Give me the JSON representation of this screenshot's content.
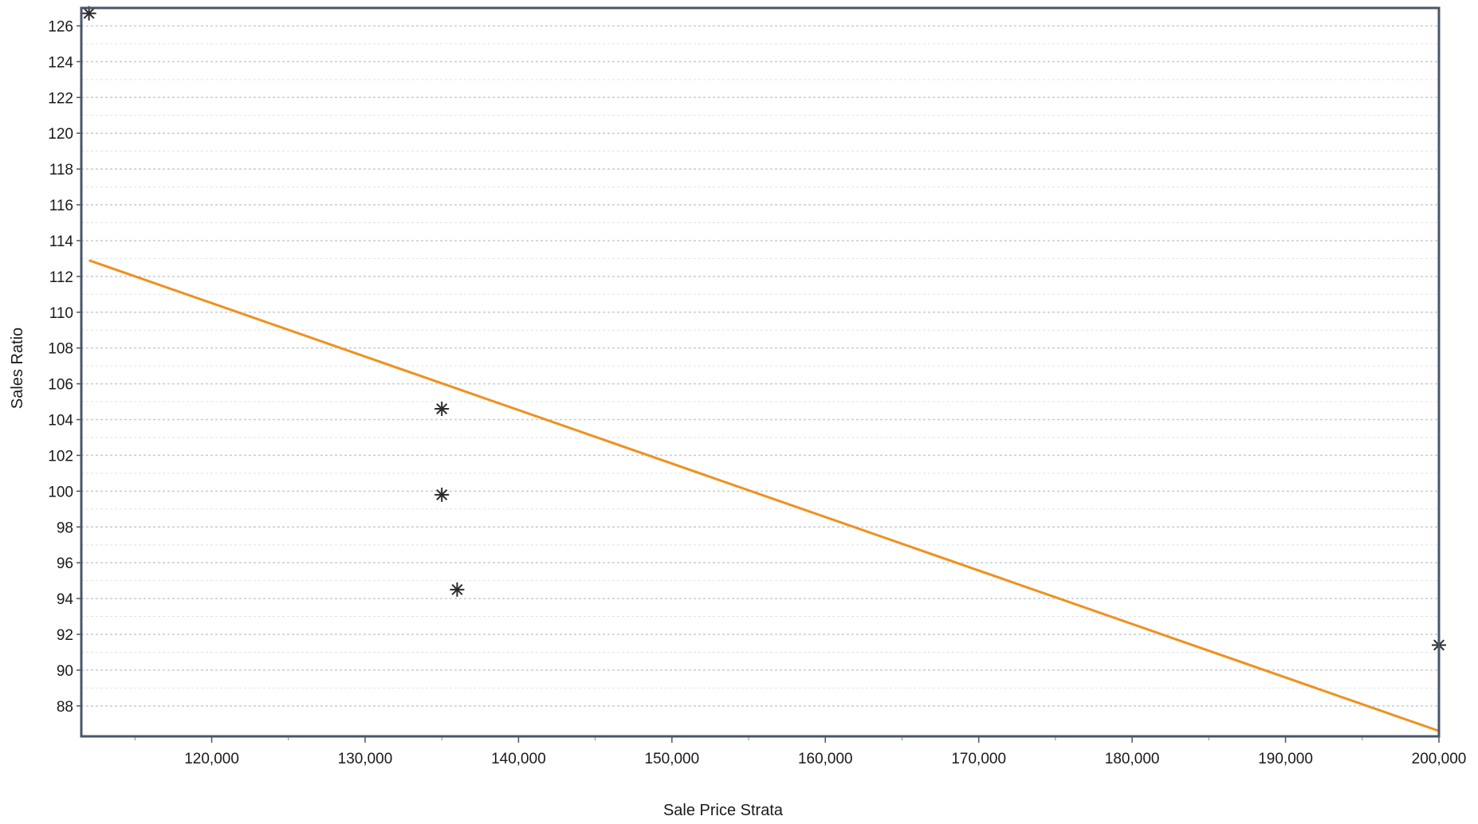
{
  "chart_data": {
    "type": "scatter",
    "title": "",
    "xlabel": "Sale Price Strata",
    "ylabel": "Sales Ratio",
    "xlim": [
      111500,
      200000
    ],
    "ylim": [
      86.3,
      127
    ],
    "x_ticks": [
      {
        "value": 120000,
        "label": "120,000"
      },
      {
        "value": 130000,
        "label": "130,000"
      },
      {
        "value": 140000,
        "label": "140,000"
      },
      {
        "value": 150000,
        "label": "150,000"
      },
      {
        "value": 160000,
        "label": "160,000"
      },
      {
        "value": 170000,
        "label": "170,000"
      },
      {
        "value": 180000,
        "label": "180,000"
      },
      {
        "value": 190000,
        "label": "190,000"
      },
      {
        "value": 200000,
        "label": "200,000"
      }
    ],
    "y_ticks": [
      {
        "value": 88,
        "label": "88"
      },
      {
        "value": 90,
        "label": "90"
      },
      {
        "value": 92,
        "label": "92"
      },
      {
        "value": 94,
        "label": "94"
      },
      {
        "value": 96,
        "label": "96"
      },
      {
        "value": 98,
        "label": "98"
      },
      {
        "value": 100,
        "label": "100"
      },
      {
        "value": 102,
        "label": "102"
      },
      {
        "value": 104,
        "label": "104"
      },
      {
        "value": 106,
        "label": "106"
      },
      {
        "value": 108,
        "label": "108"
      },
      {
        "value": 110,
        "label": "110"
      },
      {
        "value": 112,
        "label": "112"
      },
      {
        "value": 114,
        "label": "114"
      },
      {
        "value": 116,
        "label": "116"
      },
      {
        "value": 118,
        "label": "118"
      },
      {
        "value": 120,
        "label": "120"
      },
      {
        "value": 122,
        "label": "122"
      },
      {
        "value": 124,
        "label": "124"
      },
      {
        "value": 126,
        "label": "126"
      }
    ],
    "grid": {
      "horizontal": true,
      "vertical": false,
      "style": "dotted"
    },
    "series": [
      {
        "type": "scatter",
        "marker": "asterisk",
        "color": "#2b2b2b",
        "points": [
          {
            "x": 112000,
            "y": 126.7
          },
          {
            "x": 135000,
            "y": 104.6
          },
          {
            "x": 135000,
            "y": 99.8
          },
          {
            "x": 136000,
            "y": 94.5
          },
          {
            "x": 200000,
            "y": 91.4
          }
        ]
      },
      {
        "type": "line",
        "style": "trend",
        "color": "#f0901e",
        "points": [
          {
            "x": 112000,
            "y": 112.9
          },
          {
            "x": 200000,
            "y": 86.6
          }
        ]
      }
    ]
  }
}
